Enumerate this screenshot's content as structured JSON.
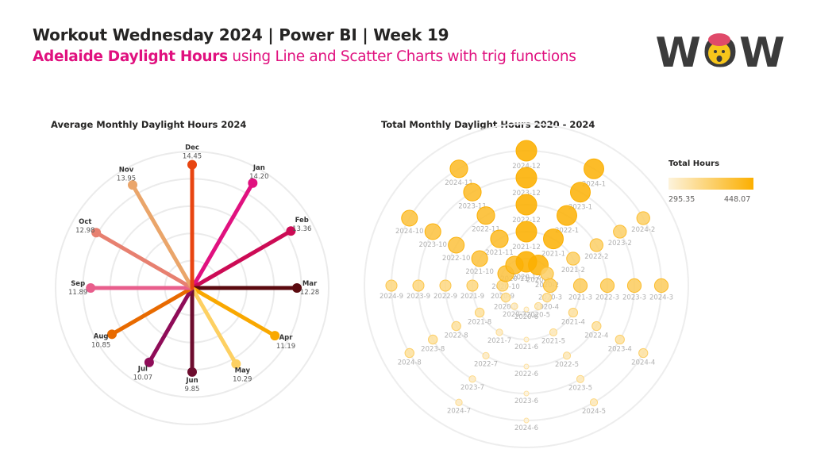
{
  "header": {
    "title": "Workout Wednesday 2024 | Power BI | Week 19",
    "subtitle_highlight": "Adelaide Daylight Hours",
    "subtitle_rest": " using Line and Scatter Charts with trig functions",
    "logo_text": "WOW"
  },
  "colors": {
    "accent": "#e0117f",
    "title": "#252423",
    "gold": "#fcaf00",
    "gold_light": "#fdf3dc"
  },
  "legend": {
    "title": "Total Hours",
    "min_label": "295.35",
    "max_label": "448.07"
  },
  "chart_data": [
    {
      "type": "radial-line",
      "title": "Average Monthly Daylight Hours 2024",
      "rlim": [
        0,
        16
      ],
      "grid_rings": 5,
      "points": [
        {
          "month": "Jan",
          "value": 14.2,
          "label": "14.20",
          "color": "#e0117f"
        },
        {
          "month": "Feb",
          "value": 13.36,
          "label": "13.36",
          "color": "#cc0b55"
        },
        {
          "month": "Mar",
          "value": 12.28,
          "label": "12.28",
          "color": "#5b0a0f"
        },
        {
          "month": "Apr",
          "value": 11.19,
          "label": "11.19",
          "color": "#f9a800"
        },
        {
          "month": "May",
          "value": 10.29,
          "label": "10.29",
          "color": "#fdd062"
        },
        {
          "month": "Jun",
          "value": 9.85,
          "label": "9.85",
          "color": "#6d0c2e"
        },
        {
          "month": "Jul",
          "value": 10.07,
          "label": "10.07",
          "color": "#8f0c58"
        },
        {
          "month": "Aug",
          "value": 10.85,
          "label": "10.85",
          "color": "#e86a00"
        },
        {
          "month": "Sep",
          "value": 11.89,
          "label": "11.89",
          "color": "#e85e8c"
        },
        {
          "month": "Oct",
          "value": 12.98,
          "label": "12.98",
          "color": "#e78070"
        },
        {
          "month": "Nov",
          "value": 13.95,
          "label": "13.95",
          "color": "#eaa56a"
        },
        {
          "month": "Dec",
          "value": 14.45,
          "label": "14.45",
          "color": "#e84511"
        }
      ]
    },
    {
      "type": "radial-scatter",
      "title": "Total Monthly Daylight Hours 2020 - 2024",
      "years": [
        2020,
        2021,
        2022,
        2023,
        2024
      ],
      "months": [
        "1",
        "2",
        "3",
        "4",
        "5",
        "6",
        "7",
        "8",
        "9",
        "10",
        "11",
        "12"
      ],
      "color_scale": {
        "min": 295.35,
        "max": 448.07,
        "from": "#fdf3dc",
        "to": "#fcaf00"
      },
      "monthly_totals": [
        440.2,
        374.1,
        380.7,
        335.7,
        319.0,
        295.4,
        312.2,
        336.4,
        356.7,
        402.4,
        418.5,
        448.1
      ],
      "labels": [
        "2020-1",
        "2020-2",
        "2020-3",
        "2020-4",
        "2020-5",
        "2020-6",
        "2020-7",
        "2020-8",
        "2020-9",
        "2020-10",
        "2020-11",
        "2020-12",
        "2021-1",
        "2021-2",
        "2021-3",
        "2021-4",
        "2021-5",
        "2021-6",
        "2021-7",
        "2021-8",
        "2021-9",
        "2021-10",
        "2021-11",
        "2021-12",
        "2022-1",
        "2022-2",
        "2022-3",
        "2022-4",
        "2022-5",
        "2022-6",
        "2022-7",
        "2022-8",
        "2022-9",
        "2022-10",
        "2022-11",
        "2022-12",
        "2023-1",
        "2023-2",
        "2023-3",
        "2023-4",
        "2023-5",
        "2023-6",
        "2023-7",
        "2023-8",
        "2023-9",
        "2023-10",
        "2023-11",
        "2023-12",
        "2024-1",
        "2024-2",
        "2024-3",
        "2024-4",
        "2024-5",
        "2024-6",
        "2024-7",
        "2024-8",
        "2024-9",
        "2024-10",
        "2024-11",
        "2024-12"
      ]
    }
  ]
}
